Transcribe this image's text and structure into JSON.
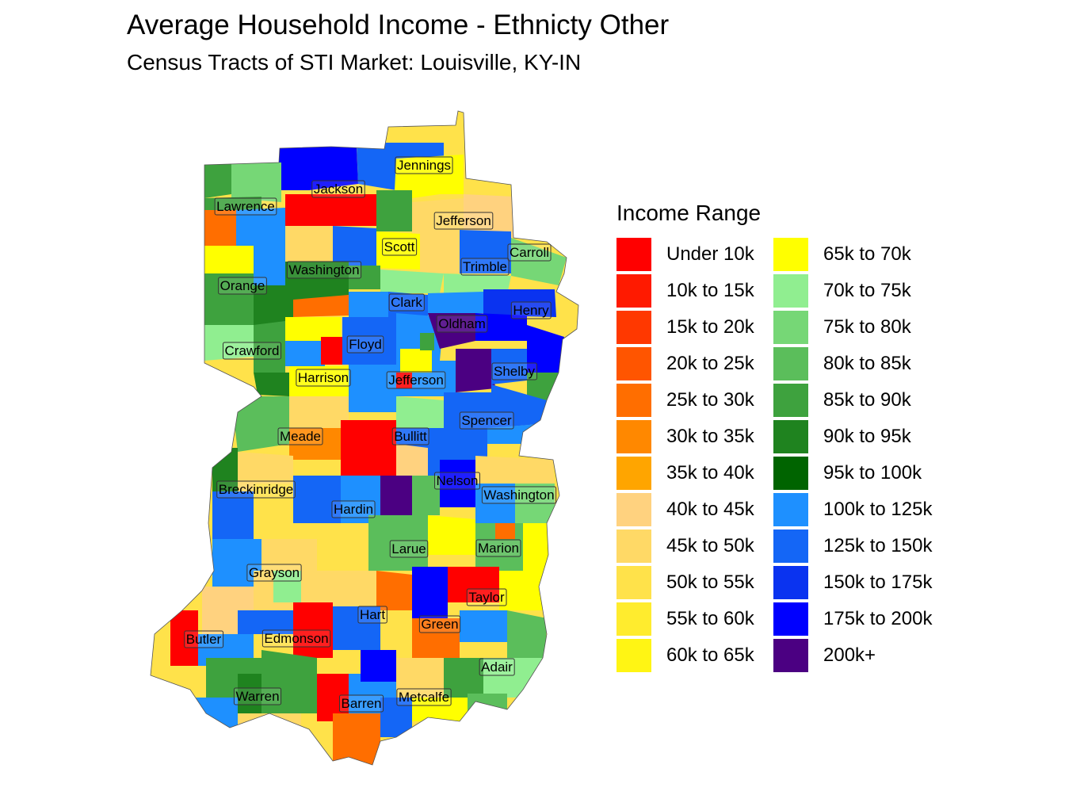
{
  "title": "Average Household Income - Ethnicty Other",
  "subtitle": "Census Tracts of STI Market: Louisville, KY-IN",
  "legend": {
    "title": "Income Range",
    "items": [
      {
        "label": "Under 10k",
        "color": "#FF0000"
      },
      {
        "label": "10k to 15k",
        "color": "#FF1A00"
      },
      {
        "label": "15k to 20k",
        "color": "#FF3800"
      },
      {
        "label": "20k to 25k",
        "color": "#FF5500"
      },
      {
        "label": "25k to 30k",
        "color": "#FF6E00"
      },
      {
        "label": "30k to 35k",
        "color": "#FF8800"
      },
      {
        "label": "35k to 40k",
        "color": "#FFA500"
      },
      {
        "label": "40k to 45k",
        "color": "#FFD27F"
      },
      {
        "label": "45k to 50k",
        "color": "#FFD966"
      },
      {
        "label": "50k to 55k",
        "color": "#FFE24A"
      },
      {
        "label": "55k to 60k",
        "color": "#FFEC2E"
      },
      {
        "label": "60k to 65k",
        "color": "#FFF514"
      },
      {
        "label": "65k to 70k",
        "color": "#FFFF00"
      },
      {
        "label": "70k to 75k",
        "color": "#90EE90"
      },
      {
        "label": "75k to 80k",
        "color": "#76D776"
      },
      {
        "label": "80k to 85k",
        "color": "#5BBE5B"
      },
      {
        "label": "85k to 90k",
        "color": "#3EA23E"
      },
      {
        "label": "90k to 95k",
        "color": "#1F831F"
      },
      {
        "label": "95k to 100k",
        "color": "#006400"
      },
      {
        "label": "100k to 125k",
        "color": "#1E90FF"
      },
      {
        "label": "125k to 150k",
        "color": "#1466F6"
      },
      {
        "label": "150k to 175k",
        "color": "#0A33F0"
      },
      {
        "label": "175k to 200k",
        "color": "#0000FF"
      },
      {
        "label": "200k+",
        "color": "#4B0082"
      }
    ]
  },
  "counties": [
    {
      "name": "Jennings"
    },
    {
      "name": "Jackson"
    },
    {
      "name": "Lawrence"
    },
    {
      "name": "Jefferson"
    },
    {
      "name": "Scott"
    },
    {
      "name": "Carroll"
    },
    {
      "name": "Trimble"
    },
    {
      "name": "Washington"
    },
    {
      "name": "Orange"
    },
    {
      "name": "Clark"
    },
    {
      "name": "Henry"
    },
    {
      "name": "Oldham"
    },
    {
      "name": "Crawford"
    },
    {
      "name": "Floyd"
    },
    {
      "name": "Harrison"
    },
    {
      "name": "Jefferson"
    },
    {
      "name": "Shelby"
    },
    {
      "name": "Spencer"
    },
    {
      "name": "Meade"
    },
    {
      "name": "Bullitt"
    },
    {
      "name": "Nelson"
    },
    {
      "name": "Breckinridge"
    },
    {
      "name": "Washington"
    },
    {
      "name": "Hardin"
    },
    {
      "name": "Larue"
    },
    {
      "name": "Marion"
    },
    {
      "name": "Grayson"
    },
    {
      "name": "Taylor"
    },
    {
      "name": "Hart"
    },
    {
      "name": "Green"
    },
    {
      "name": "Butler"
    },
    {
      "name": "Edmonson"
    },
    {
      "name": "Adair"
    },
    {
      "name": "Warren"
    },
    {
      "name": "Metcalfe"
    },
    {
      "name": "Barren"
    }
  ]
}
